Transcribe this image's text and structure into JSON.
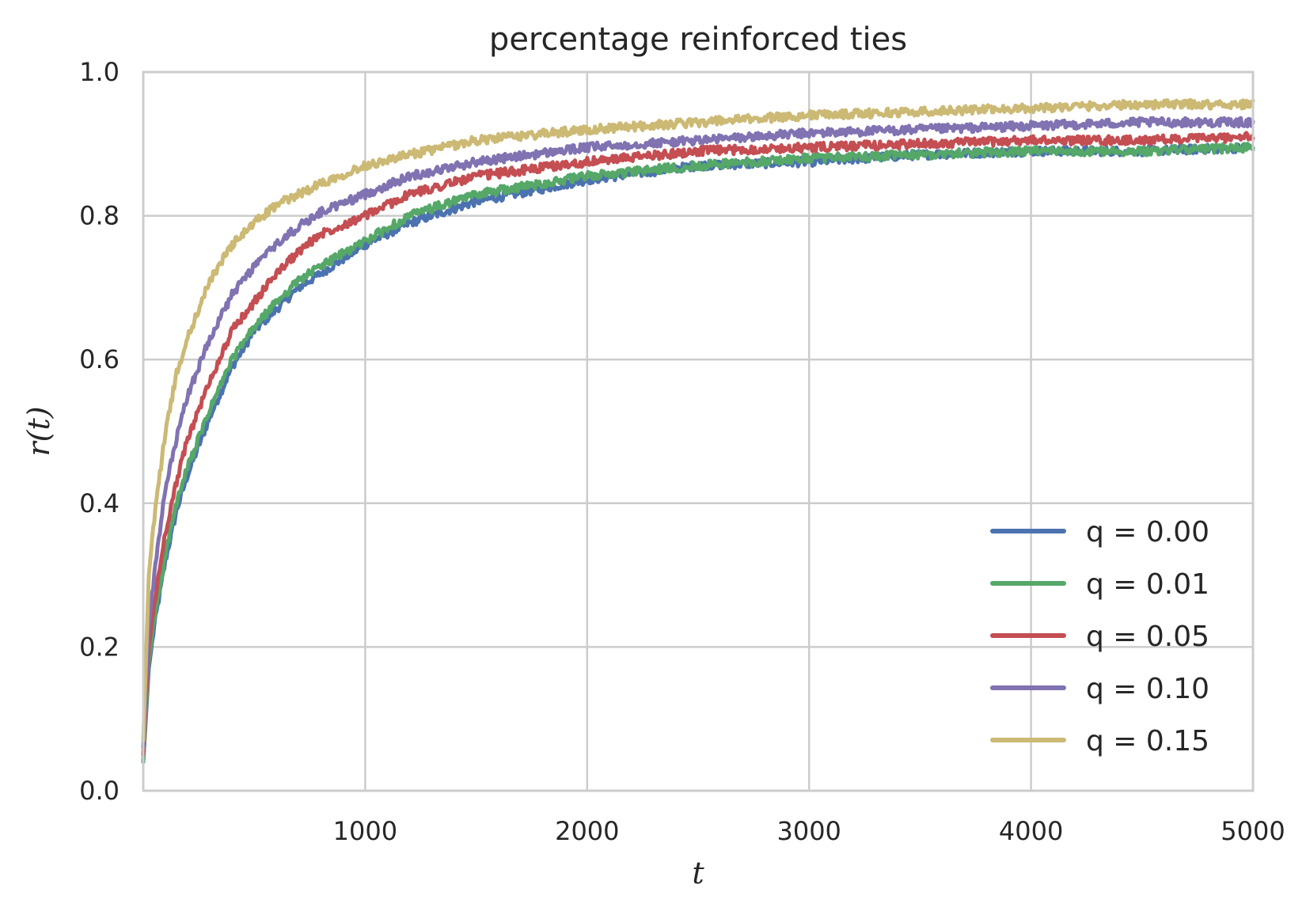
{
  "chart_data": {
    "type": "line",
    "title": "percentage reinforced ties",
    "xlabel": "t",
    "ylabel": "r(t)",
    "xlim": [
      0,
      5000
    ],
    "ylim": [
      0,
      1.0
    ],
    "xticks": [
      1000,
      2000,
      3000,
      4000,
      5000
    ],
    "yticks": [
      0.0,
      0.2,
      0.4,
      0.6,
      0.8,
      1.0
    ],
    "xtick_labels": [
      "1000",
      "2000",
      "3000",
      "4000",
      "5000"
    ],
    "ytick_labels": [
      "0.0",
      "0.2",
      "0.4",
      "0.6",
      "0.8",
      "1.0"
    ],
    "grid": true,
    "legend_position": "lower-right",
    "x": [
      0,
      25,
      50,
      100,
      150,
      200,
      300,
      400,
      500,
      600,
      700,
      800,
      1000,
      1200,
      1500,
      2000,
      2500,
      3000,
      3500,
      4000,
      4500,
      5000
    ],
    "series": [
      {
        "name": "q = 0.00",
        "color": "#4c72b0",
        "values": [
          0.04,
          0.17,
          0.23,
          0.32,
          0.39,
          0.44,
          0.52,
          0.59,
          0.64,
          0.67,
          0.7,
          0.72,
          0.76,
          0.79,
          0.82,
          0.85,
          0.87,
          0.875,
          0.885,
          0.89,
          0.89,
          0.895
        ]
      },
      {
        "name": "q = 0.01",
        "color": "#55a868",
        "values": [
          0.04,
          0.18,
          0.24,
          0.33,
          0.4,
          0.45,
          0.53,
          0.6,
          0.645,
          0.68,
          0.71,
          0.73,
          0.765,
          0.8,
          0.83,
          0.855,
          0.87,
          0.88,
          0.885,
          0.89,
          0.89,
          0.895
        ]
      },
      {
        "name": "q = 0.05",
        "color": "#c44e52",
        "values": [
          0.05,
          0.2,
          0.26,
          0.36,
          0.43,
          0.49,
          0.57,
          0.64,
          0.68,
          0.72,
          0.75,
          0.775,
          0.8,
          0.83,
          0.855,
          0.875,
          0.89,
          0.895,
          0.9,
          0.905,
          0.905,
          0.91
        ]
      },
      {
        "name": "q = 0.10",
        "color": "#8172b2",
        "values": [
          0.06,
          0.23,
          0.3,
          0.42,
          0.49,
          0.55,
          0.63,
          0.69,
          0.73,
          0.76,
          0.785,
          0.805,
          0.83,
          0.855,
          0.875,
          0.895,
          0.905,
          0.915,
          0.92,
          0.925,
          0.93,
          0.93
        ]
      },
      {
        "name": "q = 0.15",
        "color": "#ccb974",
        "values": [
          0.07,
          0.3,
          0.38,
          0.5,
          0.58,
          0.63,
          0.71,
          0.76,
          0.79,
          0.815,
          0.83,
          0.845,
          0.87,
          0.885,
          0.905,
          0.92,
          0.93,
          0.94,
          0.945,
          0.95,
          0.955,
          0.955
        ]
      }
    ]
  }
}
